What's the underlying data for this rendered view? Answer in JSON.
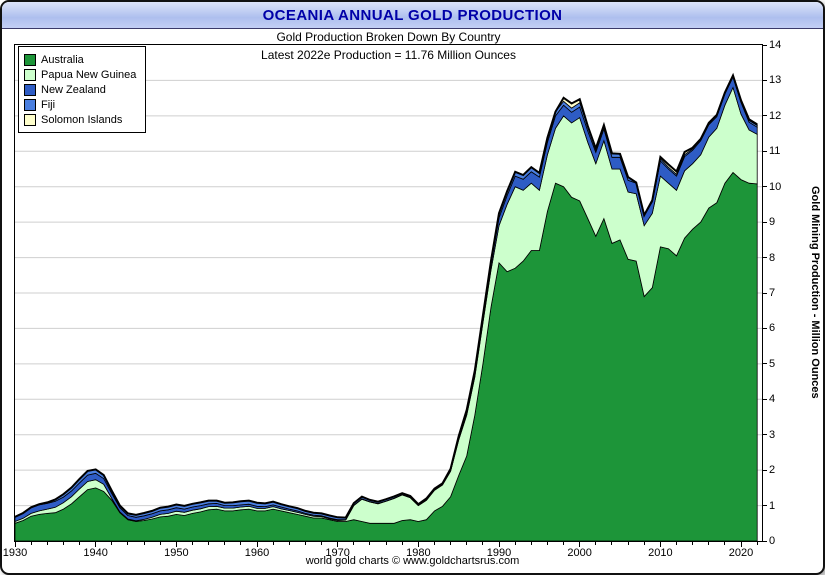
{
  "window": {
    "title": "OCEANIA ANNUAL GOLD PRODUCTION"
  },
  "subtitles": {
    "line1": "Gold Production Broken Down By Country",
    "line2": "Latest 2022e Production = 11.76 Million Ounces"
  },
  "y_axis": {
    "title": "Gold Mining Production - Million Ounces"
  },
  "footer": {
    "credit": "world gold charts © www.goldchartsrus.com"
  },
  "colors": {
    "grid": "#cfcfcf",
    "outline": "#000000",
    "title_text": "#0000a8"
  },
  "chart_data": {
    "type": "area",
    "stacked": true,
    "title": "Gold Production Broken Down By Country",
    "xlabel": "",
    "ylabel": "Gold Mining Production - Million Ounces",
    "x_start": 1930,
    "x_end": 2022,
    "x_axis_end": 2022.6,
    "ylim": [
      0,
      14
    ],
    "x_ticks": [
      1930,
      1940,
      1950,
      1960,
      1970,
      1980,
      1990,
      2000,
      2010,
      2020
    ],
    "x_minor_step": 2,
    "y_ticks": [
      0,
      1,
      2,
      3,
      4,
      5,
      6,
      7,
      8,
      9,
      10,
      11,
      12,
      13,
      14
    ],
    "grid": "horizontal",
    "legend_position": "top-left",
    "latest_total_2022e": 11.76,
    "series": [
      {
        "name": "Australia",
        "color": "#1d9539",
        "values": [
          0.5,
          0.58,
          0.7,
          0.75,
          0.78,
          0.8,
          0.9,
          1.05,
          1.25,
          1.45,
          1.5,
          1.4,
          1.15,
          0.8,
          0.6,
          0.55,
          0.58,
          0.62,
          0.68,
          0.7,
          0.75,
          0.72,
          0.78,
          0.82,
          0.88,
          0.9,
          0.85,
          0.85,
          0.88,
          0.9,
          0.85,
          0.85,
          0.9,
          0.85,
          0.8,
          0.75,
          0.7,
          0.65,
          0.65,
          0.6,
          0.55,
          0.55,
          0.6,
          0.55,
          0.5,
          0.5,
          0.5,
          0.5,
          0.58,
          0.6,
          0.55,
          0.6,
          0.85,
          0.98,
          1.25,
          1.85,
          2.4,
          3.55,
          5.0,
          6.6,
          7.85,
          7.6,
          7.7,
          7.9,
          8.2,
          8.2,
          9.3,
          10.1,
          10.0,
          9.7,
          9.6,
          9.1,
          8.6,
          9.1,
          8.4,
          8.5,
          7.95,
          7.9,
          6.9,
          7.15,
          8.3,
          8.25,
          8.05,
          8.55,
          8.8,
          9.0,
          9.4,
          9.55,
          10.1,
          10.4,
          10.2,
          10.1,
          10.08
        ]
      },
      {
        "name": "Papua New Guinea",
        "color": "#ccffcc",
        "values": [
          0.05,
          0.06,
          0.08,
          0.1,
          0.12,
          0.15,
          0.18,
          0.2,
          0.22,
          0.23,
          0.23,
          0.2,
          0.05,
          0.02,
          0.02,
          0.02,
          0.03,
          0.05,
          0.07,
          0.08,
          0.09,
          0.09,
          0.09,
          0.09,
          0.09,
          0.08,
          0.08,
          0.08,
          0.08,
          0.08,
          0.07,
          0.07,
          0.07,
          0.06,
          0.06,
          0.06,
          0.05,
          0.05,
          0.04,
          0.03,
          0.03,
          0.04,
          0.4,
          0.63,
          0.6,
          0.55,
          0.62,
          0.7,
          0.72,
          0.62,
          0.45,
          0.55,
          0.58,
          0.6,
          0.72,
          1.0,
          1.15,
          1.08,
          1.15,
          1.05,
          1.05,
          1.9,
          2.3,
          2.0,
          1.9,
          1.7,
          1.6,
          1.55,
          2.0,
          2.1,
          2.35,
          2.15,
          2.05,
          2.2,
          2.1,
          2.0,
          1.9,
          1.9,
          2.0,
          2.1,
          2.0,
          1.85,
          1.85,
          1.9,
          1.85,
          1.9,
          2.0,
          2.1,
          2.2,
          2.4,
          1.85,
          1.5,
          1.4
        ]
      },
      {
        "name": "New Zealand",
        "color": "#2e5cc5",
        "values": [
          0.13,
          0.15,
          0.16,
          0.17,
          0.16,
          0.17,
          0.16,
          0.16,
          0.17,
          0.18,
          0.18,
          0.16,
          0.14,
          0.12,
          0.1,
          0.1,
          0.1,
          0.1,
          0.1,
          0.1,
          0.1,
          0.09,
          0.09,
          0.09,
          0.08,
          0.08,
          0.07,
          0.07,
          0.06,
          0.06,
          0.06,
          0.05,
          0.05,
          0.05,
          0.04,
          0.04,
          0.03,
          0.03,
          0.02,
          0.02,
          0.02,
          0.01,
          0.01,
          0.01,
          0.01,
          0.01,
          0.01,
          0.01,
          0.01,
          0.01,
          0.01,
          0.02,
          0.02,
          0.02,
          0.03,
          0.05,
          0.08,
          0.1,
          0.12,
          0.15,
          0.22,
          0.25,
          0.3,
          0.31,
          0.32,
          0.37,
          0.35,
          0.35,
          0.3,
          0.3,
          0.3,
          0.32,
          0.32,
          0.33,
          0.33,
          0.33,
          0.33,
          0.3,
          0.28,
          0.32,
          0.43,
          0.4,
          0.4,
          0.4,
          0.38,
          0.4,
          0.35,
          0.33,
          0.32,
          0.3,
          0.33,
          0.22,
          0.2
        ]
      },
      {
        "name": "Fiji",
        "color": "#4a7fe0",
        "values": [
          0.0,
          0.0,
          0.01,
          0.02,
          0.03,
          0.05,
          0.08,
          0.1,
          0.11,
          0.12,
          0.11,
          0.1,
          0.08,
          0.06,
          0.06,
          0.07,
          0.08,
          0.08,
          0.09,
          0.09,
          0.09,
          0.09,
          0.09,
          0.09,
          0.09,
          0.08,
          0.08,
          0.09,
          0.1,
          0.1,
          0.1,
          0.09,
          0.09,
          0.08,
          0.08,
          0.08,
          0.07,
          0.07,
          0.07,
          0.07,
          0.07,
          0.06,
          0.06,
          0.06,
          0.05,
          0.05,
          0.05,
          0.05,
          0.04,
          0.04,
          0.03,
          0.03,
          0.03,
          0.03,
          0.04,
          0.06,
          0.07,
          0.08,
          0.09,
          0.11,
          0.13,
          0.12,
          0.12,
          0.12,
          0.13,
          0.12,
          0.13,
          0.12,
          0.11,
          0.12,
          0.12,
          0.12,
          0.11,
          0.11,
          0.11,
          0.1,
          0.09,
          0.02,
          0.02,
          0.05,
          0.06,
          0.05,
          0.05,
          0.05,
          0.04,
          0.05,
          0.04,
          0.04,
          0.03,
          0.03,
          0.04,
          0.05,
          0.05
        ]
      },
      {
        "name": "Solomon Islands",
        "color": "#ffffcc",
        "values": [
          0,
          0,
          0,
          0,
          0,
          0,
          0,
          0,
          0,
          0,
          0,
          0,
          0,
          0,
          0,
          0,
          0,
          0,
          0,
          0,
          0,
          0,
          0,
          0,
          0,
          0,
          0,
          0,
          0,
          0,
          0,
          0,
          0,
          0,
          0,
          0,
          0,
          0,
          0,
          0,
          0,
          0,
          0,
          0,
          0,
          0,
          0,
          0,
          0,
          0,
          0,
          0,
          0,
          0,
          0,
          0,
          0,
          0,
          0,
          0,
          0,
          0,
          0,
          0,
          0,
          0,
          0,
          0,
          0.1,
          0.13,
          0.1,
          0.02,
          0,
          0,
          0,
          0,
          0,
          0,
          0,
          0,
          0.05,
          0.08,
          0.08,
          0.08,
          0.03,
          0,
          0.01,
          0.01,
          0.01,
          0.01,
          0.02,
          0.03,
          0.03
        ]
      }
    ]
  }
}
